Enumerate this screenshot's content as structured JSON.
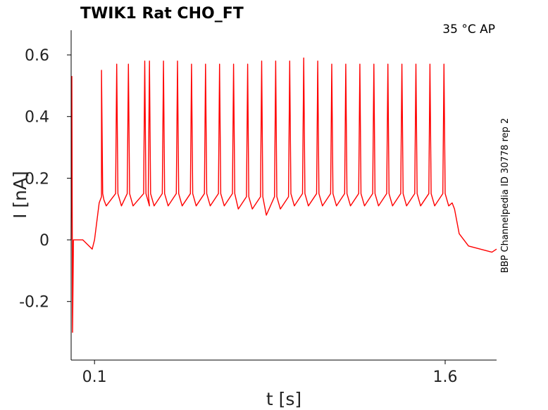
{
  "chart_data": {
    "type": "line",
    "title": "TWIK1  Rat  CHO_FT",
    "annotation": "35 °C  AP",
    "side_label": "BBP Channelpedia ID 30778 rep 2",
    "xlabel": "t [s]",
    "ylabel": "I [nA]",
    "xlim": [
      0.0,
      1.82
    ],
    "ylim": [
      -0.39,
      0.68
    ],
    "x_ticks": [
      {
        "value": 0.1,
        "label": "0.1"
      },
      {
        "value": 1.6,
        "label": "1.6"
      }
    ],
    "y_ticks": [
      {
        "value": 0.6,
        "label": "0.6"
      },
      {
        "value": 0.4,
        "label": "0.4"
      },
      {
        "value": 0.2,
        "label": "0.2"
      },
      {
        "value": 0.0,
        "label": "0"
      },
      {
        "value": -0.2,
        "label": "-0.2"
      }
    ],
    "grid": false,
    "series_color": "#ff0000",
    "series": [
      {
        "x": [
          0.0,
          0.003,
          0.006,
          0.01,
          0.05,
          0.09,
          0.1,
          0.12,
          0.13,
          0.13,
          0.135,
          0.14,
          0.15,
          0.19,
          0.195,
          0.2,
          0.215,
          0.24,
          0.245,
          0.25,
          0.265,
          0.31,
          0.315,
          0.32,
          0.335,
          0.33,
          0.335,
          0.34,
          0.355,
          0.39,
          0.395,
          0.4,
          0.415,
          0.45,
          0.455,
          0.46,
          0.475,
          0.51,
          0.515,
          0.52,
          0.535,
          0.57,
          0.575,
          0.58,
          0.595,
          0.63,
          0.635,
          0.64,
          0.655,
          0.69,
          0.695,
          0.7,
          0.715,
          0.75,
          0.755,
          0.76,
          0.775,
          0.81,
          0.815,
          0.82,
          0.835,
          0.87,
          0.875,
          0.88,
          0.895,
          0.93,
          0.935,
          0.94,
          0.955,
          0.99,
          0.995,
          1.0,
          1.015,
          1.05,
          1.055,
          1.06,
          1.075,
          1.11,
          1.115,
          1.12,
          1.135,
          1.17,
          1.175,
          1.18,
          1.195,
          1.23,
          1.235,
          1.24,
          1.255,
          1.29,
          1.295,
          1.3,
          1.315,
          1.35,
          1.355,
          1.36,
          1.375,
          1.41,
          1.415,
          1.42,
          1.435,
          1.47,
          1.475,
          1.48,
          1.495,
          1.53,
          1.535,
          1.54,
          1.555,
          1.59,
          1.595,
          1.6,
          1.615,
          1.63,
          1.64,
          1.66,
          1.7,
          1.75,
          1.8,
          1.82
        ],
        "y": [
          0.0,
          0.53,
          -0.3,
          0.0,
          0.0,
          -0.03,
          0.0,
          0.12,
          0.14,
          0.55,
          0.15,
          0.13,
          0.11,
          0.15,
          0.57,
          0.15,
          0.11,
          0.15,
          0.57,
          0.15,
          0.11,
          0.15,
          0.58,
          0.15,
          0.11,
          0.15,
          0.58,
          0.15,
          0.11,
          0.15,
          0.58,
          0.15,
          0.11,
          0.15,
          0.58,
          0.15,
          0.11,
          0.15,
          0.57,
          0.15,
          0.11,
          0.15,
          0.57,
          0.15,
          0.11,
          0.15,
          0.57,
          0.15,
          0.11,
          0.15,
          0.57,
          0.15,
          0.1,
          0.14,
          0.57,
          0.14,
          0.1,
          0.14,
          0.58,
          0.14,
          0.08,
          0.14,
          0.58,
          0.14,
          0.1,
          0.14,
          0.58,
          0.15,
          0.11,
          0.15,
          0.59,
          0.15,
          0.11,
          0.15,
          0.58,
          0.15,
          0.11,
          0.15,
          0.57,
          0.15,
          0.11,
          0.15,
          0.57,
          0.15,
          0.11,
          0.15,
          0.57,
          0.15,
          0.11,
          0.15,
          0.57,
          0.15,
          0.11,
          0.15,
          0.57,
          0.15,
          0.11,
          0.15,
          0.57,
          0.15,
          0.11,
          0.15,
          0.57,
          0.15,
          0.11,
          0.15,
          0.57,
          0.15,
          0.11,
          0.15,
          0.57,
          0.15,
          0.11,
          0.12,
          0.1,
          0.02,
          -0.02,
          -0.03,
          -0.04,
          -0.03
        ]
      }
    ]
  }
}
